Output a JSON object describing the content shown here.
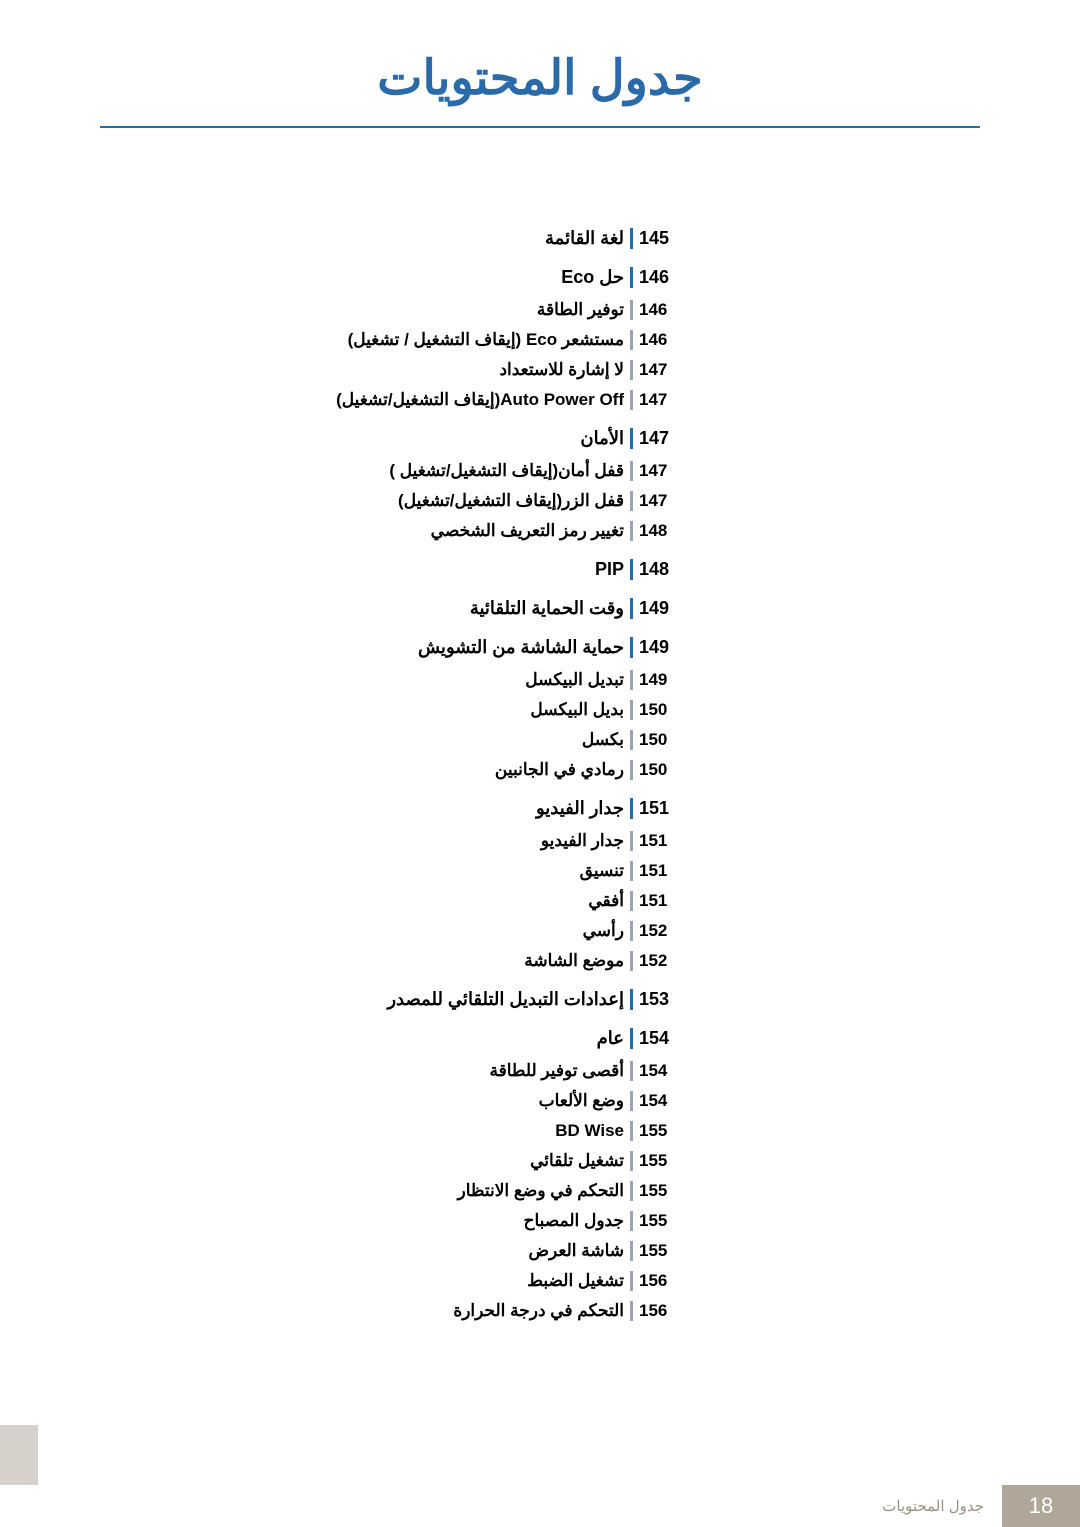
{
  "title": "جدول المحتويات",
  "title_color": "#2b6aa8",
  "section_rule_color": "#2b6aa8",
  "item_rule_color": "#9da3b0",
  "entries": [
    {
      "page": "145",
      "label": "لغة القائمة",
      "section": true
    },
    {
      "page": "146",
      "label": "حل Eco",
      "section": true
    },
    {
      "page": "146",
      "label": "توفير الطاقة",
      "section": false
    },
    {
      "page": "146",
      "label": "مستشعر Eco (إيقاف التشغيل / تشغيل)",
      "section": false
    },
    {
      "page": "147",
      "label": "لا إشارة للاستعداد",
      "section": false
    },
    {
      "page": "147",
      "label": "Auto Power Off(إيقاف التشغيل/تشغيل)",
      "section": false
    },
    {
      "page": "147",
      "label": "الأمان",
      "section": true
    },
    {
      "page": "147",
      "label": "قفل أمان(إيقاف التشغيل/تشغيل )",
      "section": false
    },
    {
      "page": "147",
      "label": "قفل الزر(إيقاف التشغيل/تشغيل)",
      "section": false
    },
    {
      "page": "148",
      "label": "تغيير رمز التعريف الشخصي",
      "section": false
    },
    {
      "page": "148",
      "label": "PIP",
      "section": true
    },
    {
      "page": "149",
      "label": "وقت الحماية التلقائية",
      "section": true
    },
    {
      "page": "149",
      "label": "حماية الشاشة من التشويش",
      "section": true
    },
    {
      "page": "149",
      "label": "تبديل البيكسل",
      "section": false
    },
    {
      "page": "150",
      "label": "بديل البيكسل",
      "section": false
    },
    {
      "page": "150",
      "label": "بكسل",
      "section": false
    },
    {
      "page": "150",
      "label": "رمادي في الجانبين",
      "section": false
    },
    {
      "page": "151",
      "label": "جدار الفيديو",
      "section": true
    },
    {
      "page": "151",
      "label": "جدار الفيديو",
      "section": false
    },
    {
      "page": "151",
      "label": "تنسيق",
      "section": false
    },
    {
      "page": "151",
      "label": "أفقي",
      "section": false
    },
    {
      "page": "152",
      "label": "رأسي",
      "section": false
    },
    {
      "page": "152",
      "label": "موضع الشاشة",
      "section": false
    },
    {
      "page": "153",
      "label": "إعدادات التبديل التلقائي للمصدر",
      "section": true
    },
    {
      "page": "154",
      "label": "عام",
      "section": true
    },
    {
      "page": "154",
      "label": "أقصى توفير للطاقة",
      "section": false
    },
    {
      "page": "154",
      "label": "وضع الألعاب",
      "section": false
    },
    {
      "page": "155",
      "label": "BD Wise",
      "section": false
    },
    {
      "page": "155",
      "label": "تشغيل تلقائي",
      "section": false
    },
    {
      "page": "155",
      "label": "التحكم في وضع الانتظار",
      "section": false
    },
    {
      "page": "155",
      "label": "جدول المصباح",
      "section": false
    },
    {
      "page": "155",
      "label": "شاشة العرض",
      "section": false
    },
    {
      "page": "156",
      "label": "تشغيل الضبط",
      "section": false
    },
    {
      "page": "156",
      "label": "التحكم في درجة الحرارة",
      "section": false
    }
  ],
  "footer": {
    "page_number": "18",
    "label": "جدول المحتويات",
    "bg_color": "#b0a79a",
    "label_color": "#9b9180"
  },
  "side_tab_color": "#d6d2cb"
}
